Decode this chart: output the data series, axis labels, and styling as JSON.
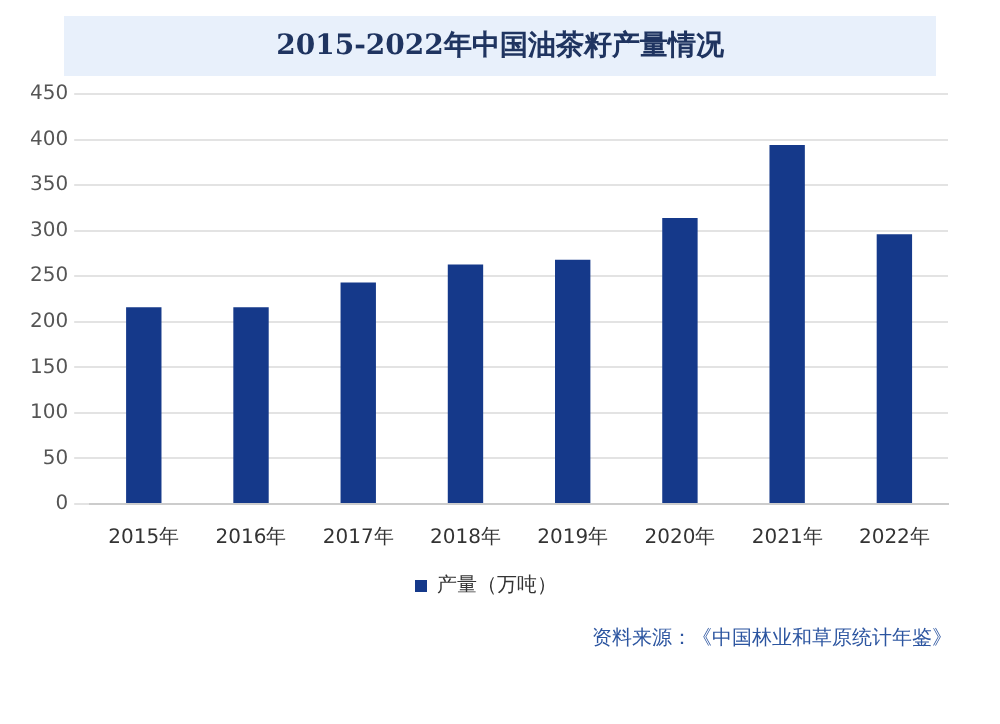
{
  "chart_data": {
    "type": "bar",
    "title": "2015-2022年中国油茶籽产量情况",
    "categories": [
      "2015年",
      "2016年",
      "2017年",
      "2018年",
      "2019年",
      "2020年",
      "2021年",
      "2022年"
    ],
    "series": [
      {
        "name": "产量（万吨）",
        "color": "#15398a",
        "values": [
          216,
          216,
          243,
          263,
          268,
          314,
          394,
          296
        ]
      }
    ],
    "ylim": [
      0,
      450
    ],
    "yticks": [
      0,
      50,
      100,
      150,
      200,
      250,
      300,
      350,
      400,
      450
    ],
    "grid": "y",
    "legend": "bottom",
    "annotations": [
      "资料来源：《中国林业和草原统计年鉴》"
    ]
  }
}
